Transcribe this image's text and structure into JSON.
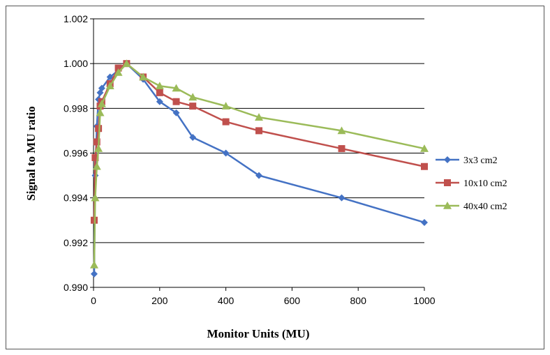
{
  "chart_data": {
    "type": "line",
    "title": "",
    "xlabel": "Monitor Units (MU)",
    "ylabel": "Signal to MU ratio",
    "xlim": [
      0,
      1000
    ],
    "ylim": [
      0.99,
      1.002
    ],
    "xticks": [
      "0",
      "200",
      "400",
      "600",
      "800",
      "1000"
    ],
    "yticks": [
      "0.990",
      "0.992",
      "0.994",
      "0.996",
      "0.998",
      "1.000",
      "1.002"
    ],
    "grid": "horizontal",
    "legend_position": "right",
    "series": [
      {
        "name": "3x3 cm2",
        "color": "#4472C4",
        "marker": "diamond",
        "x": [
          2,
          5,
          10,
          15,
          20,
          25,
          50,
          75,
          100,
          150,
          200,
          250,
          300,
          400,
          500,
          750,
          1000
        ],
        "y": [
          0.9906,
          0.995,
          0.9972,
          0.9984,
          0.9987,
          0.9989,
          0.9994,
          0.9997,
          1.0,
          0.9993,
          0.9983,
          0.9978,
          0.9967,
          0.996,
          0.995,
          0.994,
          0.9929
        ]
      },
      {
        "name": "10x10 cm2",
        "color": "#C0504D",
        "marker": "square",
        "x": [
          2,
          5,
          10,
          15,
          20,
          25,
          50,
          75,
          100,
          150,
          200,
          250,
          300,
          400,
          500,
          750,
          1000
        ],
        "y": [
          0.993,
          0.9958,
          0.9965,
          0.9971,
          0.9981,
          0.9983,
          0.9991,
          0.9998,
          1.0,
          0.9994,
          0.9987,
          0.9983,
          0.9981,
          0.9974,
          0.997,
          0.9962,
          0.9954
        ]
      },
      {
        "name": "40x40 cm2",
        "color": "#9BBB59",
        "marker": "triangle",
        "x": [
          2,
          5,
          10,
          15,
          20,
          25,
          50,
          75,
          100,
          150,
          200,
          250,
          300,
          400,
          500,
          750,
          1000
        ],
        "y": [
          0.991,
          0.994,
          0.9954,
          0.9962,
          0.9978,
          0.9982,
          0.999,
          0.9996,
          1.0,
          0.9994,
          0.999,
          0.9989,
          0.9985,
          0.9981,
          0.9976,
          0.997,
          0.9962
        ]
      }
    ]
  }
}
